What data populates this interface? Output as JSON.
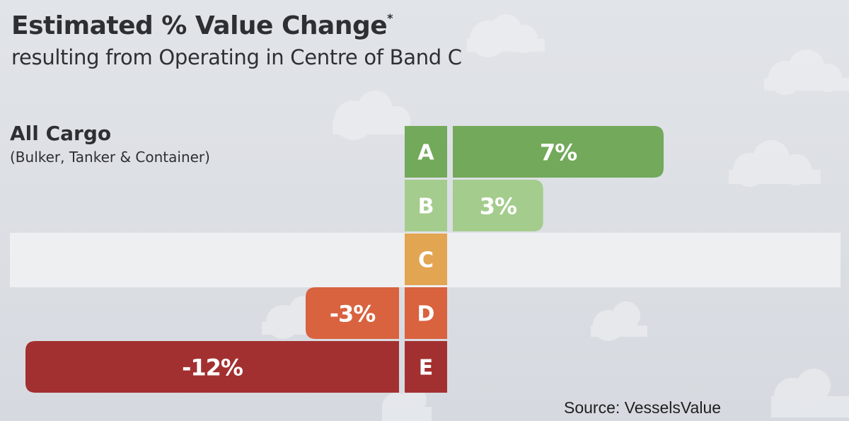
{
  "header": {
    "title": "Estimated % Value Change",
    "title_marker": "*",
    "subtitle": "resulting from Operating in Centre of Band C"
  },
  "category": {
    "title": "All Cargo",
    "subtitle": "(Bulker, Tanker & Container)"
  },
  "source": "Source: VesselsValue",
  "chart_data": {
    "type": "bar",
    "orientation": "horizontal",
    "title": "Estimated % Value Change",
    "subtitle": "resulting from Operating in Centre of Band C",
    "categories": [
      "A",
      "B",
      "C",
      "D",
      "E"
    ],
    "values": [
      7,
      3,
      0,
      -3,
      -12
    ],
    "value_labels": [
      "7%",
      "3%",
      "",
      "-3%",
      "-12%"
    ],
    "colors": [
      "#72a95a",
      "#a4cc8d",
      "#e2a552",
      "#d9623f",
      "#a33030"
    ],
    "highlight_category": "C",
    "highlight_color": "#eeeff1",
    "xlim": [
      -12,
      7
    ],
    "grid": false,
    "legend": "none"
  }
}
